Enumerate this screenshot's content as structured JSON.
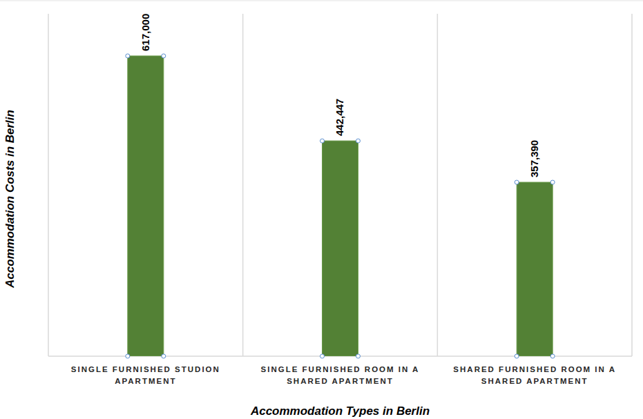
{
  "chart_data": {
    "type": "bar",
    "x_label": "Accommodation Types in Berlin",
    "y_label": "Accommodation Costs in Berlin",
    "categories": [
      "SINGLE FURNISHED STUDION APARTMENT",
      "SINGLE FURNISHED ROOM IN A SHARED APARTMENT",
      "SHARED FURNISHED ROOM IN A SHARED APARTMENT"
    ],
    "values": [
      617000,
      442447,
      357390
    ],
    "value_labels": [
      "617,000",
      "442,447",
      "357,390"
    ],
    "color": "#538135",
    "ylim": [
      0,
      703500
    ],
    "grid": true,
    "data_labels": true,
    "tick_labels": "x"
  }
}
